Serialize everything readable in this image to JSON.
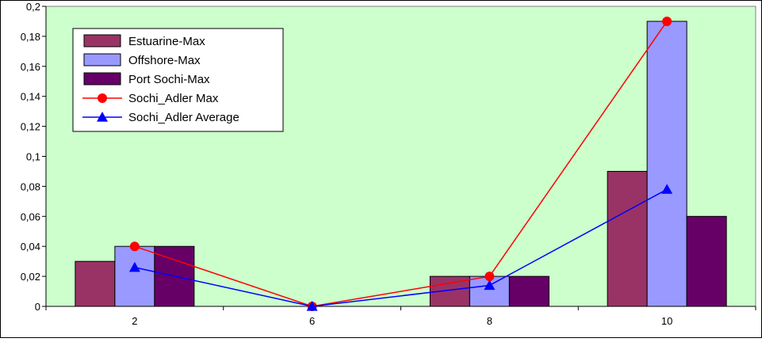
{
  "chart_data": {
    "type": "bar",
    "categories": [
      "2",
      "6",
      "8",
      "10"
    ],
    "ylim": [
      0,
      0.2
    ],
    "yticks": [
      {
        "value": 0,
        "label": "0"
      },
      {
        "value": 0.02,
        "label": "0,02"
      },
      {
        "value": 0.04,
        "label": "0,04"
      },
      {
        "value": 0.06,
        "label": "0,06"
      },
      {
        "value": 0.08,
        "label": "0,08"
      },
      {
        "value": 0.1,
        "label": "0,1"
      },
      {
        "value": 0.12,
        "label": "0,12"
      },
      {
        "value": 0.14,
        "label": "0,14"
      },
      {
        "value": 0.16,
        "label": "0,16"
      },
      {
        "value": 0.18,
        "label": "0,18"
      },
      {
        "value": 0.2,
        "label": "0,2"
      }
    ],
    "grid": false,
    "legend_position": "top-left",
    "plot_background": "#ccffcc",
    "series": [
      {
        "name": "Estuarine-Max",
        "kind": "bar",
        "color": "#993366",
        "values": [
          0.03,
          0,
          0.02,
          0.09
        ]
      },
      {
        "name": "Offshore-Max",
        "kind": "bar",
        "color": "#9999ff",
        "values": [
          0.04,
          0,
          0.02,
          0.19
        ]
      },
      {
        "name": "Port Sochi-Max",
        "kind": "bar",
        "color": "#660066",
        "values": [
          0.04,
          0,
          0.02,
          0.06
        ]
      },
      {
        "name": "Sochi_Adler Max",
        "kind": "line",
        "marker": "circle",
        "color": "#ff0000",
        "values": [
          0.04,
          0,
          0.02,
          0.19
        ]
      },
      {
        "name": "Sochi_Adler Average",
        "kind": "line",
        "marker": "triangle",
        "color": "#0000ff",
        "values": [
          0.026,
          0,
          0.014,
          0.078
        ]
      }
    ]
  }
}
